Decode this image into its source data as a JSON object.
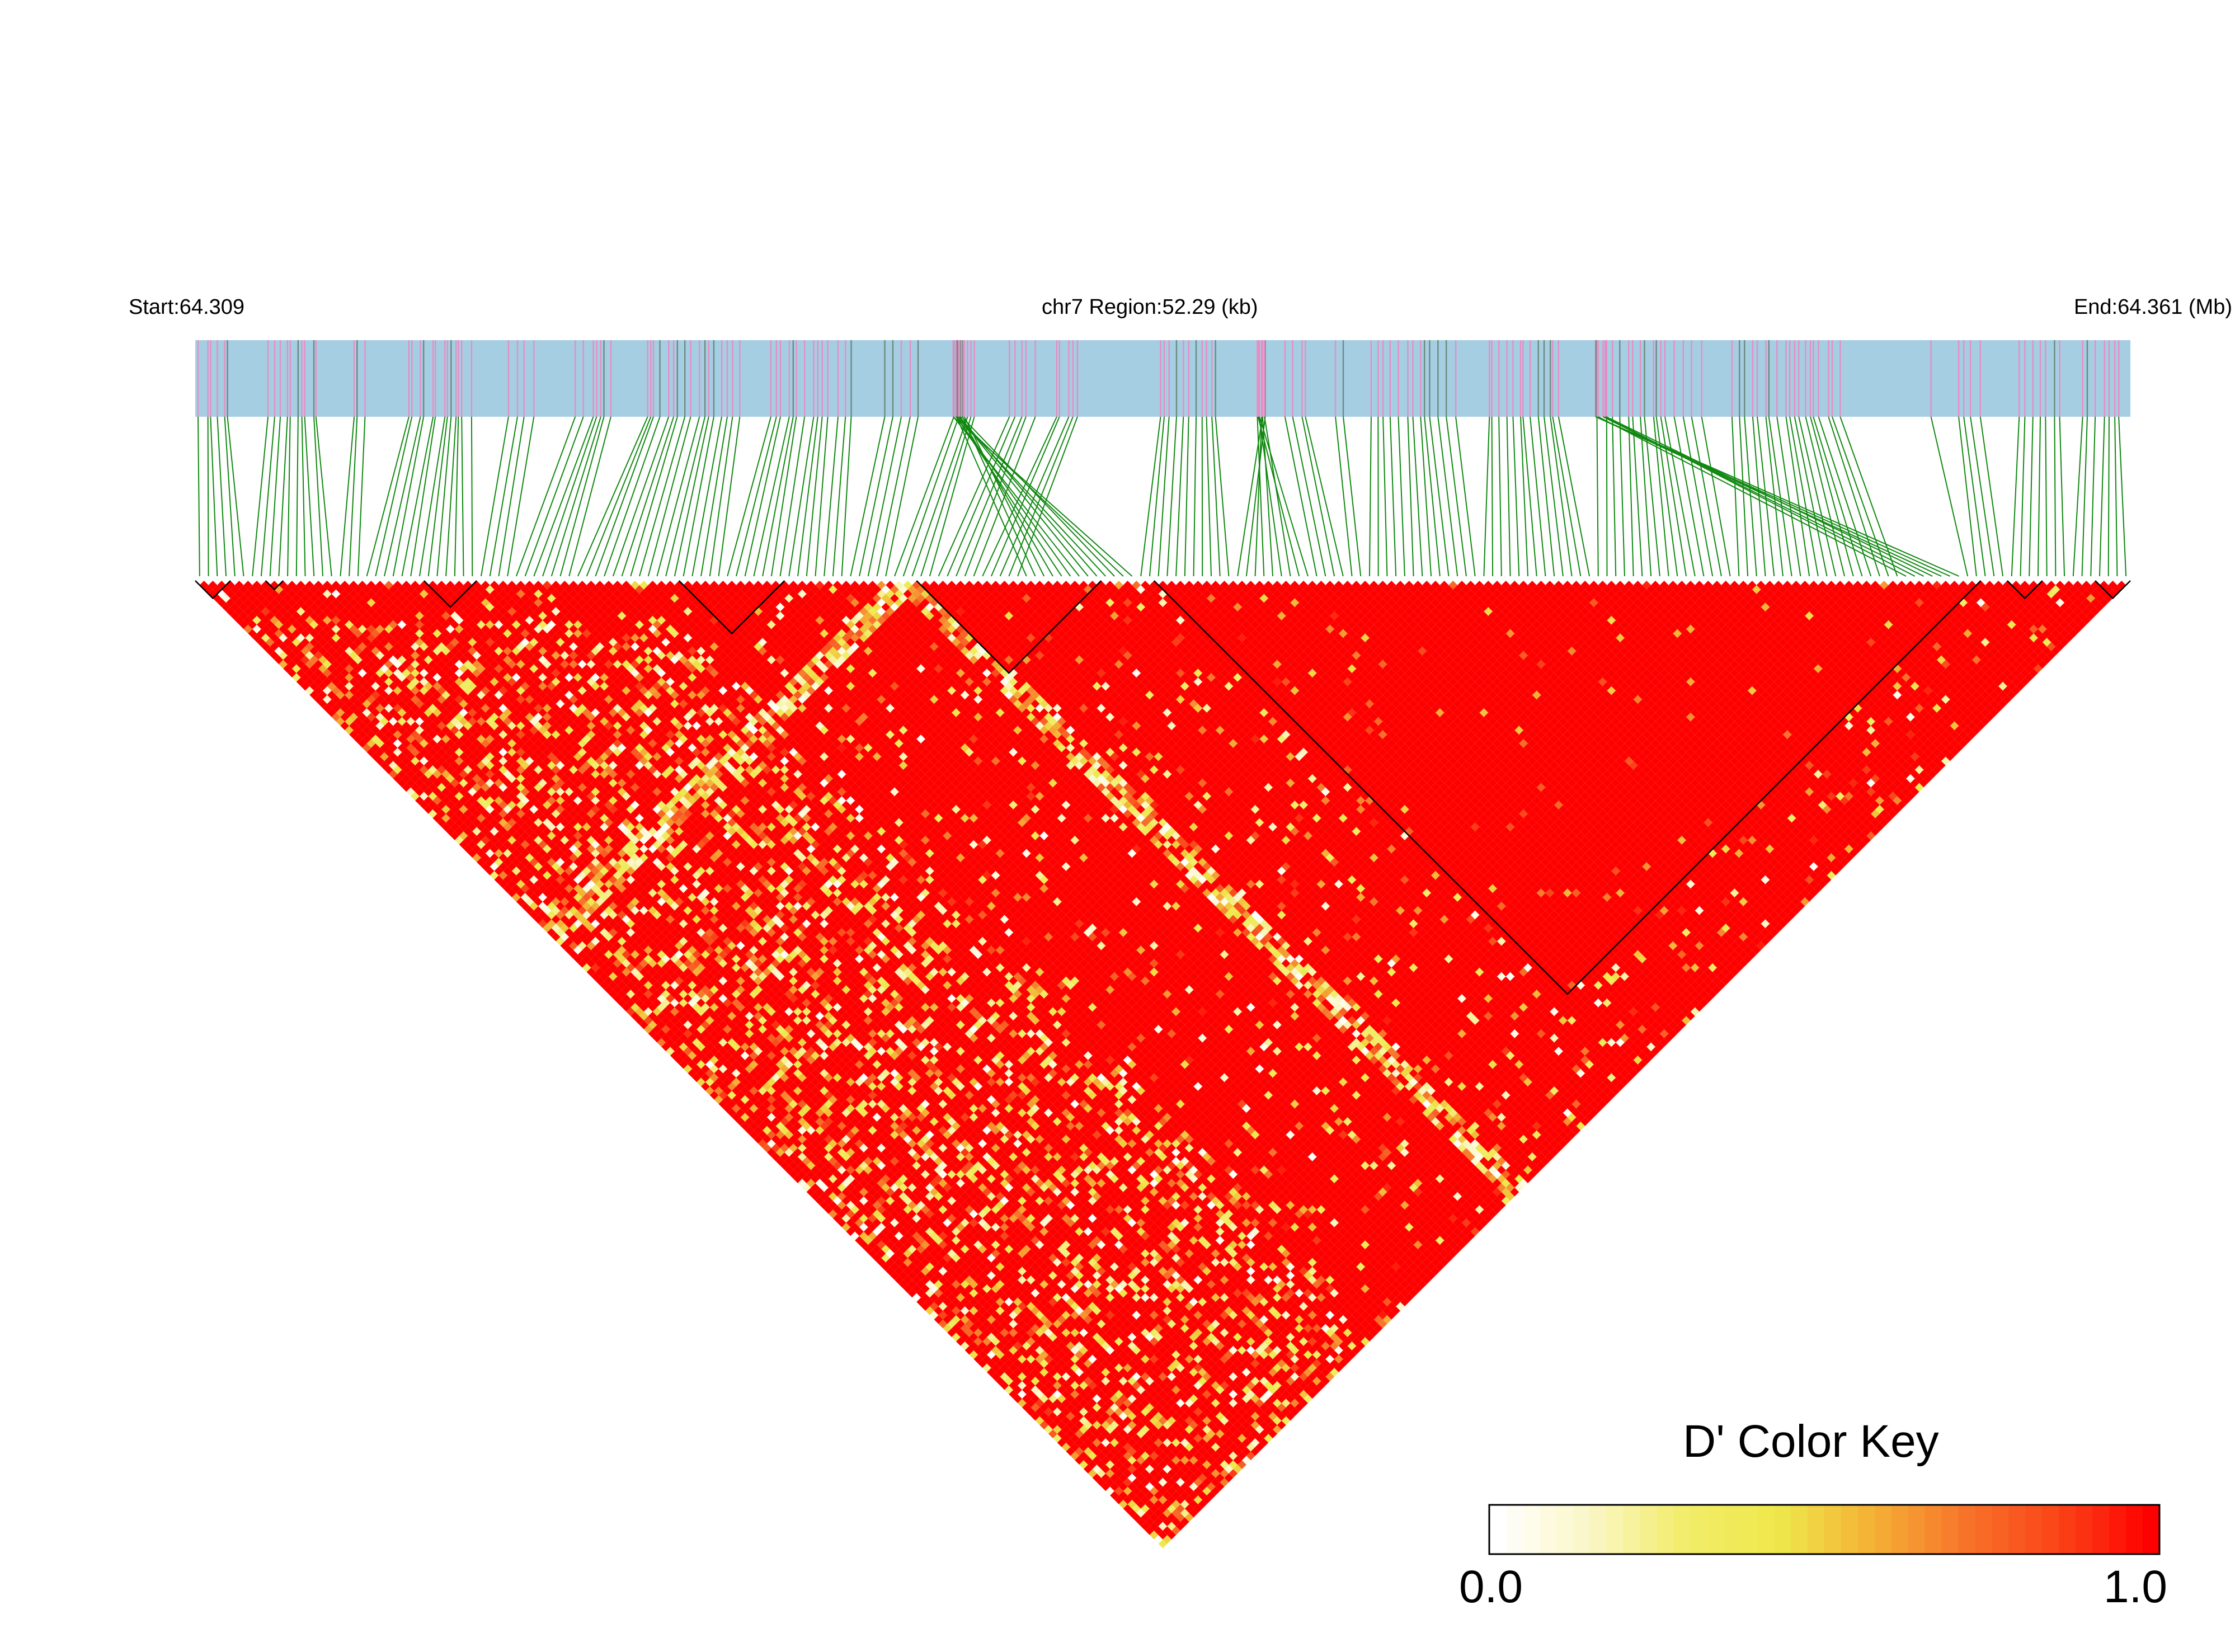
{
  "header": {
    "start": "Start:64.309",
    "region": "chr7 Region:52.29 (kb)",
    "end": "End:64.361 (Mb)"
  },
  "chart_data": {
    "type": "heatmap",
    "title": "",
    "region_start_mb": 64.309,
    "region_end_mb": 64.361,
    "region_size_kb": 52.29,
    "chromosome": "chr7",
    "n_snps": 220,
    "value": "D'",
    "value_range": [
      0.0,
      1.0
    ],
    "predominant_value": 1.0,
    "haplotype_blocks_snp_index": [
      [
        0,
        3
      ],
      [
        8,
        9
      ],
      [
        26,
        31
      ],
      [
        55,
        66
      ],
      [
        82,
        102
      ],
      [
        109,
        202
      ],
      [
        206,
        209
      ],
      [
        216,
        219
      ]
    ],
    "low_ld_bands_snp_index": [
      79,
      80,
      81,
      82
    ],
    "colors": {
      "track_bg": "#a6cee3",
      "snp_tick_a": "#e58ec4",
      "snp_tick_b": "#6c8a7f",
      "connector": "#118811",
      "block_outline": "#000000",
      "high": "#ff0000",
      "mid": "#eeea4f",
      "low": "#ffffff"
    }
  },
  "legend": {
    "title": "D' Color Key",
    "min_label": "0.0",
    "max_label": "1.0",
    "stops": [
      "#ffffff",
      "#fbf6c6",
      "#f2ed6a",
      "#eee84b",
      "#f4b235",
      "#f7742a",
      "#fa4418",
      "#ff0000"
    ]
  }
}
